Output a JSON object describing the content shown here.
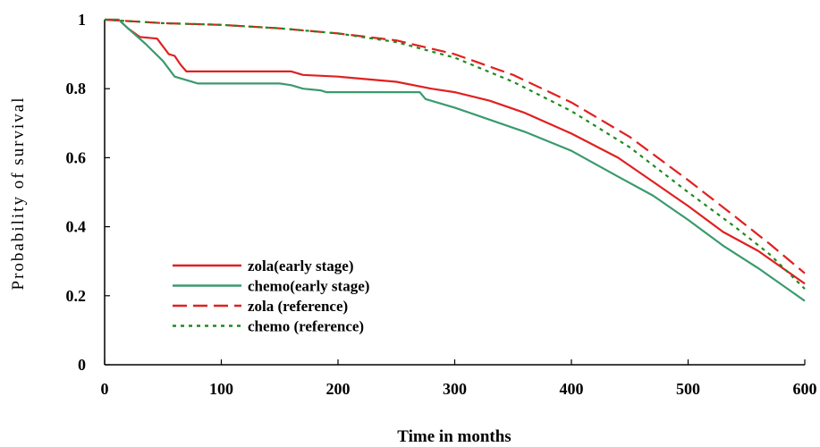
{
  "chart_data": {
    "type": "line",
    "title": "",
    "xlabel": "Time in months",
    "ylabel": "Probability of survival",
    "xlim": [
      0,
      600
    ],
    "ylim": [
      0,
      1
    ],
    "xticks": [
      "0",
      "100",
      "200",
      "300",
      "400",
      "500",
      "600"
    ],
    "yticks": [
      "0",
      "0.2",
      "0.4",
      "0.6",
      "0.8",
      "1"
    ],
    "grid": false,
    "legend_position": "lower-left",
    "series": [
      {
        "name": "zola(early stage)",
        "color": "#e02020",
        "style": "solid",
        "points": [
          [
            0,
            1.0
          ],
          [
            12,
            1.0
          ],
          [
            20,
            0.975
          ],
          [
            30,
            0.95
          ],
          [
            45,
            0.945
          ],
          [
            55,
            0.9
          ],
          [
            60,
            0.895
          ],
          [
            65,
            0.87
          ],
          [
            70,
            0.85
          ],
          [
            100,
            0.85
          ],
          [
            160,
            0.85
          ],
          [
            170,
            0.84
          ],
          [
            200,
            0.835
          ],
          [
            250,
            0.82
          ],
          [
            280,
            0.8
          ],
          [
            300,
            0.79
          ],
          [
            330,
            0.765
          ],
          [
            360,
            0.73
          ],
          [
            400,
            0.67
          ],
          [
            440,
            0.6
          ],
          [
            470,
            0.53
          ],
          [
            500,
            0.46
          ],
          [
            530,
            0.385
          ],
          [
            560,
            0.33
          ],
          [
            600,
            0.235
          ]
        ]
      },
      {
        "name": "chemo(early stage)",
        "color": "#3a9a6e",
        "style": "solid",
        "points": [
          [
            0,
            1.0
          ],
          [
            12,
            1.0
          ],
          [
            20,
            0.975
          ],
          [
            35,
            0.93
          ],
          [
            50,
            0.88
          ],
          [
            60,
            0.835
          ],
          [
            70,
            0.825
          ],
          [
            80,
            0.815
          ],
          [
            150,
            0.815
          ],
          [
            160,
            0.81
          ],
          [
            170,
            0.8
          ],
          [
            185,
            0.795
          ],
          [
            190,
            0.79
          ],
          [
            270,
            0.79
          ],
          [
            275,
            0.77
          ],
          [
            300,
            0.745
          ],
          [
            330,
            0.71
          ],
          [
            360,
            0.675
          ],
          [
            400,
            0.62
          ],
          [
            440,
            0.545
          ],
          [
            470,
            0.49
          ],
          [
            500,
            0.42
          ],
          [
            530,
            0.345
          ],
          [
            560,
            0.28
          ],
          [
            600,
            0.185
          ]
        ]
      },
      {
        "name": "zola (reference)",
        "color": "#e02020",
        "style": "dashed",
        "points": [
          [
            0,
            1.0
          ],
          [
            50,
            0.99
          ],
          [
            100,
            0.985
          ],
          [
            150,
            0.975
          ],
          [
            200,
            0.96
          ],
          [
            250,
            0.94
          ],
          [
            300,
            0.9
          ],
          [
            350,
            0.84
          ],
          [
            400,
            0.76
          ],
          [
            450,
            0.66
          ],
          [
            500,
            0.535
          ],
          [
            540,
            0.43
          ],
          [
            570,
            0.35
          ],
          [
            600,
            0.265
          ]
        ]
      },
      {
        "name": "chemo (reference)",
        "color": "#1f8a1f",
        "style": "dotted",
        "points": [
          [
            0,
            1.0
          ],
          [
            50,
            0.99
          ],
          [
            100,
            0.985
          ],
          [
            150,
            0.975
          ],
          [
            200,
            0.96
          ],
          [
            250,
            0.935
          ],
          [
            300,
            0.89
          ],
          [
            350,
            0.82
          ],
          [
            400,
            0.735
          ],
          [
            450,
            0.63
          ],
          [
            500,
            0.5
          ],
          [
            540,
            0.4
          ],
          [
            570,
            0.32
          ],
          [
            600,
            0.22
          ]
        ]
      }
    ]
  }
}
